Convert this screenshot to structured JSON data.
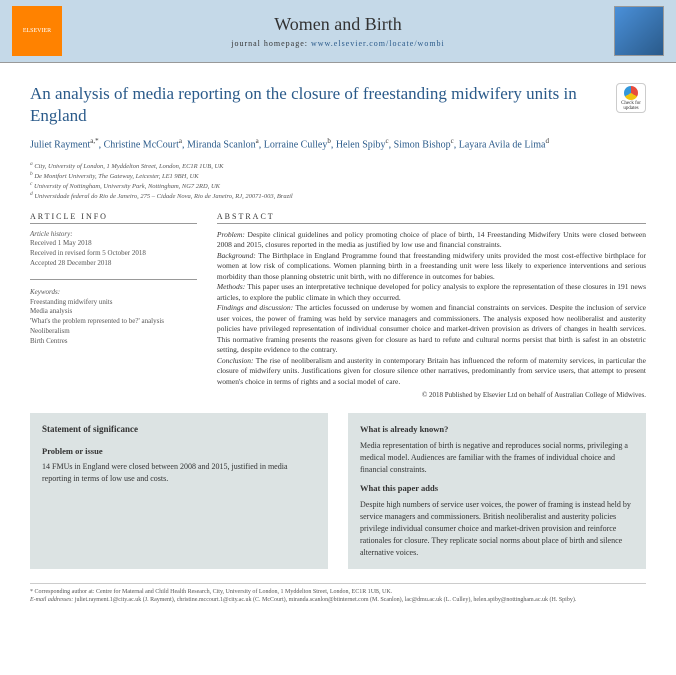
{
  "header": {
    "publisher": "ELSEVIER",
    "journal": "Women and Birth",
    "homepage_label": "journal homepage: ",
    "homepage_url": "www.elsevier.com/locate/wombi"
  },
  "article": {
    "title": "An analysis of media reporting on the closure of freestanding midwifery units in England",
    "check_label": "Check for updates",
    "authors_html": "Juliet Rayment<sup>a,*</sup>, Christine McCourt<sup>a</sup>, Miranda Scanlon<sup>a</sup>, Lorraine Culley<sup>b</sup>, Helen Spiby<sup>c</sup>, Simon Bishop<sup>c</sup>, Layara Avila de Lima<sup>d</sup>",
    "affiliations": [
      "a City, University of London, 1 Myddelton Street, London, EC1R 1UB, UK",
      "b De Montfort University, The Gateway, Leicester, LE1 9BH, UK",
      "c University of Nottingham, University Park, Nottingham, NG7 2RD, UK",
      "d Universidade federal do Rio de Janeiro, 275 – Cidade Nova, Rio de Janeiro, RJ, 20071-003, Brazil"
    ]
  },
  "info": {
    "section": "ARTICLE INFO",
    "history_label": "Article history:",
    "history": [
      "Received 1 May 2018",
      "Received in revised form 5 October 2018",
      "Accepted 28 December 2018"
    ],
    "keywords_label": "Keywords:",
    "keywords": [
      "Freestanding midwifery units",
      "Media analysis",
      "'What's the problem represented to be?' analysis",
      "Neoliberalism",
      "Birth Centres"
    ]
  },
  "abstract": {
    "section": "ABSTRACT",
    "blocks": [
      {
        "label": "Problem:",
        "text": "Despite clinical guidelines and policy promoting choice of place of birth, 14 Freestanding Midwifery Units were closed between 2008 and 2015, closures reported in the media as justified by low use and financial constraints."
      },
      {
        "label": "Background:",
        "text": "The Birthplace in England Programme found that freestanding midwifery units provided the most cost-effective birthplace for women at low risk of complications. Women planning birth in a freestanding unit were less likely to experience interventions and serious morbidity than those planning obstetric unit birth, with no difference in outcomes for babies."
      },
      {
        "label": "Methods:",
        "text": "This paper uses an interpretative technique developed for policy analysis to explore the representation of these closures in 191 news articles, to explore the public climate in which they occurred."
      },
      {
        "label": "Findings and discussion:",
        "text": "The articles focussed on underuse by women and financial constraints on services. Despite the inclusion of service user voices, the power of framing was held by service managers and commissioners. The analysis exposed how neoliberalist and austerity policies have privileged representation of individual consumer choice and market-driven provision as drivers of changes in health services. This normative framing presents the reasons given for closure as hard to refute and cultural norms persist that birth is safest in an obstetric setting, despite evidence to the contrary."
      },
      {
        "label": "Conclusion:",
        "text": "The rise of neoliberalism and austerity in contemporary Britain has influenced the reform of maternity services, in particular the closure of midwifery units. Justifications given for closure silence other narratives, predominantly from service users, that attempt to present women's choice in terms of rights and a social model of care."
      }
    ],
    "copyright": "© 2018 Published by Elsevier Ltd on behalf of Australian College of Midwives."
  },
  "boxes": {
    "left": {
      "title": "Statement of significance",
      "sub1": "Problem or issue",
      "text1": "14 FMUs in England were closed between 2008 and 2015, justified in media reporting in terms of low use and costs."
    },
    "right": {
      "sub1": "What is already known?",
      "text1": "Media representation of birth is negative and reproduces social norms, privileging a medical model. Audiences are familiar with the frames of individual choice and financial constraints.",
      "sub2": "What this paper adds",
      "text2": "Despite high numbers of service user voices, the power of framing is instead held by service managers and commissioners. British neoliberalist and austerity policies privilege individual consumer choice and market-driven provision and reinforce rationales for closure. They replicate social norms about place of birth and silence alternative voices."
    }
  },
  "footnote": {
    "corr": "* Corresponding author at: Centre for Maternal and Child Health Research, City, University of London, 1 Myddelton Street, London, EC1R 1UB, UK.",
    "emails_label": "E-mail addresses: ",
    "emails": "juliet.rayment.1@city.ac.uk (J. Rayment), christine.mccourt.1@city.ac.uk (C. McCourt), miranda.scanlon@btinternet.com (M. Scanlon), lac@dmu.ac.uk (L. Culley), helen.spiby@nottingham.ac.uk (H. Spiby)."
  },
  "style": {
    "header_bg": "#c5d9e8",
    "link_color": "#2a5a8a",
    "box_bg": "#dce3e3",
    "logo_bg": "#ff8200"
  }
}
